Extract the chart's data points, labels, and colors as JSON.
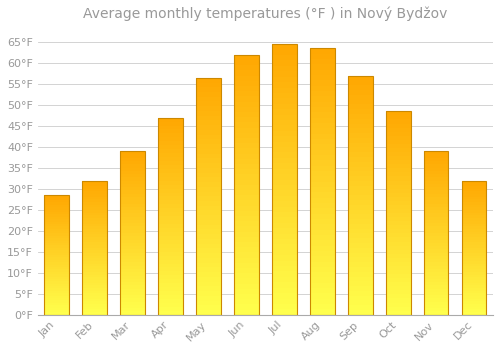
{
  "title": "Average monthly temperatures (°F ) in Nový Bydžov",
  "months": [
    "Jan",
    "Feb",
    "Mar",
    "Apr",
    "May",
    "Jun",
    "Jul",
    "Aug",
    "Sep",
    "Oct",
    "Nov",
    "Dec"
  ],
  "values": [
    28.5,
    32.0,
    39.0,
    47.0,
    56.5,
    62.0,
    64.5,
    63.5,
    57.0,
    48.5,
    39.0,
    32.0
  ],
  "bar_color_top": "#FFA500",
  "bar_color_bottom": "#FFD700",
  "bar_edge_color": "#CC8800",
  "background_color": "#FFFFFF",
  "grid_color": "#CCCCCC",
  "text_color": "#999999",
  "ylim": [
    0,
    68
  ],
  "yticks": [
    0,
    5,
    10,
    15,
    20,
    25,
    30,
    35,
    40,
    45,
    50,
    55,
    60,
    65
  ],
  "title_fontsize": 10,
  "tick_fontsize": 8,
  "bar_width": 0.65
}
